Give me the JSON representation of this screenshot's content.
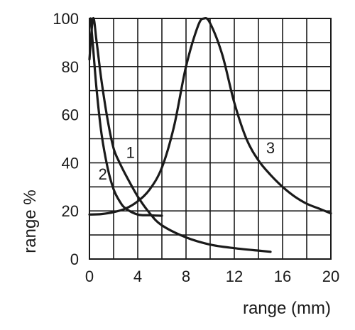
{
  "chart_data": {
    "type": "line",
    "title": "",
    "xlabel": "range (mm)",
    "ylabel": "range %",
    "xlim": [
      0,
      20
    ],
    "ylim": [
      0,
      100
    ],
    "x_ticks": [
      0,
      4,
      8,
      12,
      16,
      20
    ],
    "y_ticks": [
      0,
      20,
      40,
      60,
      80,
      100
    ],
    "x_tick_labels": [
      "0",
      "4",
      "8",
      "12",
      "16",
      "20"
    ],
    "y_tick_labels": [
      "0",
      "20",
      "40",
      "60",
      "80",
      "100"
    ],
    "grid": true,
    "series": [
      {
        "name": "1",
        "x": [
          0,
          0.3,
          0.6,
          1,
          1.5,
          2,
          2.5,
          3,
          4,
          5,
          6,
          8,
          10,
          12,
          14,
          15
        ],
        "y": [
          83,
          100,
          90,
          74,
          58,
          46,
          40,
          35,
          26,
          19,
          14,
          9,
          6,
          4.5,
          3.5,
          3
        ]
      },
      {
        "name": "2",
        "x": [
          0.1,
          0.3,
          0.6,
          1,
          1.5,
          2,
          2.5,
          3,
          4,
          5,
          6
        ],
        "y": [
          100,
          88,
          70,
          52,
          38,
          29,
          24,
          21,
          18.5,
          18.2,
          18
        ]
      },
      {
        "name": "3",
        "x": [
          0,
          1,
          2,
          3,
          4,
          5,
          6,
          7,
          8,
          9,
          9.5,
          10,
          11,
          12,
          13,
          14,
          15,
          16,
          17,
          18,
          19,
          20
        ],
        "y": [
          18.5,
          18.7,
          19.5,
          21,
          24,
          29,
          38,
          55,
          80,
          97,
          100,
          98,
          85,
          65,
          50,
          41,
          35,
          30,
          26,
          23,
          21,
          19
        ]
      }
    ],
    "curve_labels": [
      "1",
      "2",
      "3"
    ]
  }
}
